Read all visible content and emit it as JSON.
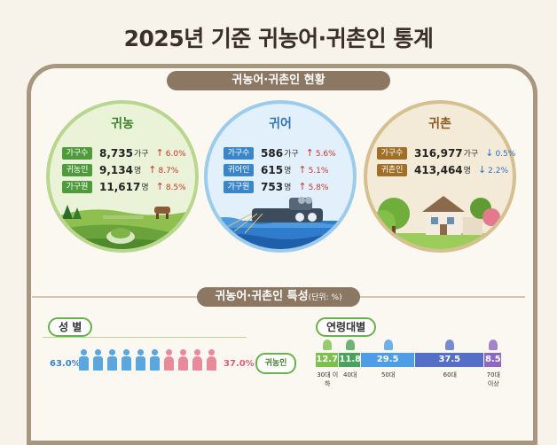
{
  "title": "2025년 기준  귀농어·귀촌인 통계",
  "section1": "귀농어·귀촌인 현황",
  "section2_title": "귀농어·귀촌인 특성",
  "section2_unit": "(단위: %)",
  "farm": {
    "header": "귀농",
    "rows": [
      {
        "tag": "가구수",
        "value": "8,735",
        "unit": "가구",
        "change": "6.0%"
      },
      {
        "tag": "귀농인",
        "value": "9,134",
        "unit": "명",
        "change": "8.7%"
      },
      {
        "tag": "가구원",
        "value": "11,617",
        "unit": "명",
        "change": "8.5%"
      }
    ]
  },
  "fish": {
    "header": "귀어",
    "rows": [
      {
        "tag": "가구수",
        "value": "586",
        "unit": "가구",
        "change": "5.6%"
      },
      {
        "tag": "귀어인",
        "value": "615",
        "unit": "명",
        "change": "5.1%"
      },
      {
        "tag": "가구원",
        "value": "753",
        "unit": "명",
        "change": "5.8%"
      }
    ]
  },
  "village": {
    "header": "귀촌",
    "rows": [
      {
        "tag": "가구수",
        "value": "316,977",
        "unit": "가구",
        "change": "0.5%"
      },
      {
        "tag": "귀촌인",
        "value": "413,464",
        "unit": "명",
        "change": "2.2%"
      }
    ]
  },
  "gender": {
    "label": "성 별",
    "male_pct": "63.0%",
    "female_pct": "37.0%",
    "male_share": 63.0,
    "female_share": 37.0,
    "badge": "귀농인"
  },
  "age": {
    "label": "연령대별",
    "groups": [
      {
        "value": "12.7",
        "label": "30대 이하",
        "share": 12.7
      },
      {
        "value": "11.8",
        "label": "40대",
        "share": 11.8
      },
      {
        "value": "29.5",
        "label": "50대",
        "share": 29.5
      },
      {
        "value": "37.5",
        "label": "60대",
        "share": 37.5
      },
      {
        "value": "8.5",
        "label": "70대 이상",
        "share": 8.5
      }
    ]
  },
  "colors": {
    "farm_tag": "#4f9a3a",
    "fish_tag": "#3b86c8",
    "village_tag": "#a06f2a",
    "up": "#c8342c",
    "down": "#2f6fc0",
    "male": "#5aa7e0",
    "female": "#e98a9a",
    "age": [
      "#7cc14e",
      "#4aa35a",
      "#4d9ee6",
      "#5470c6",
      "#8d67c2"
    ]
  }
}
